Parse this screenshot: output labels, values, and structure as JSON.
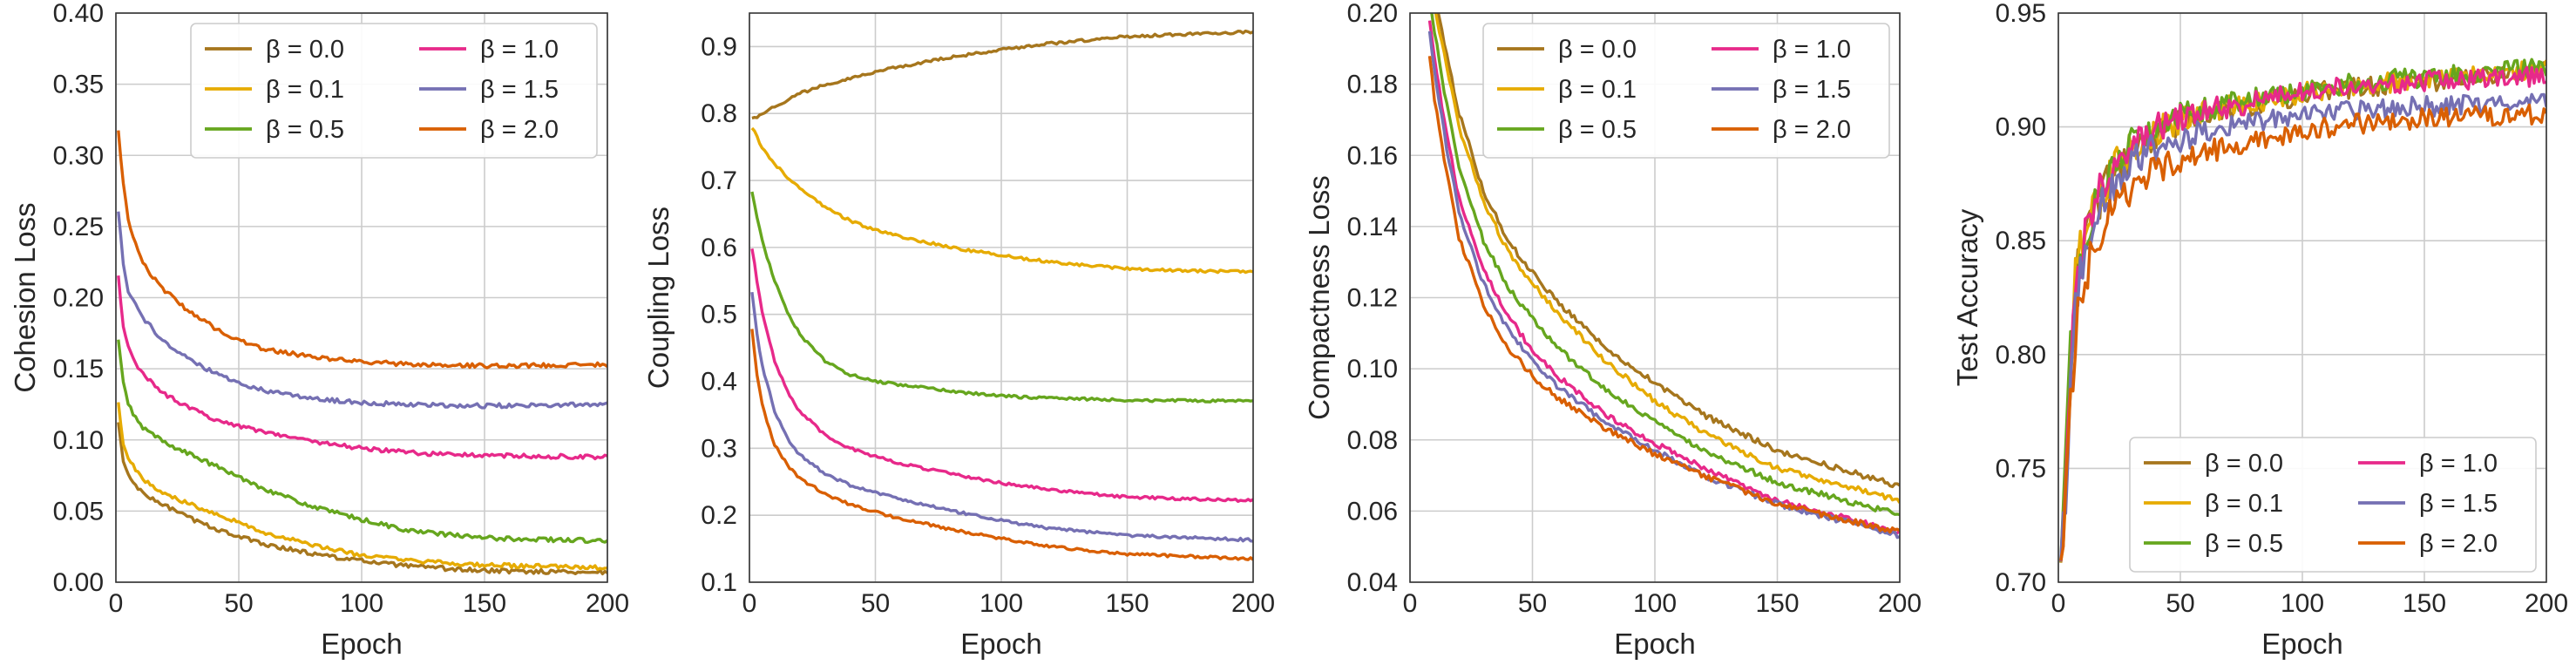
{
  "series_labels": [
    "β = 0.0",
    "β = 0.1",
    "β = 0.5",
    "β = 1.0",
    "β = 1.5",
    "β = 2.0"
  ],
  "series_colors": [
    "#a6761d",
    "#e6ab02",
    "#66a61e",
    "#e7298a",
    "#7570b3",
    "#d95f02"
  ],
  "chart_data": [
    {
      "type": "line",
      "xlabel": "Epoch",
      "ylabel": "Cohesion Loss",
      "xlim": [
        0,
        200
      ],
      "ylim": [
        0.0,
        0.4
      ],
      "xticks": [
        0,
        50,
        100,
        150,
        200
      ],
      "yticks": [
        0.0,
        0.05,
        0.1,
        0.15,
        0.2,
        0.25,
        0.3,
        0.35,
        0.4
      ],
      "ytick_decimals": 2,
      "grid": true,
      "legend": "top-right",
      "noise": 0.0015,
      "x": [
        1,
        3,
        5,
        10,
        15,
        20,
        30,
        40,
        50,
        60,
        80,
        100,
        120,
        150,
        200
      ],
      "series": [
        {
          "name": "β = 0.0",
          "values": [
            0.112,
            0.085,
            0.075,
            0.064,
            0.058,
            0.054,
            0.045,
            0.038,
            0.032,
            0.027,
            0.02,
            0.015,
            0.011,
            0.008,
            0.007
          ]
        },
        {
          "name": "β = 0.1",
          "values": [
            0.126,
            0.098,
            0.088,
            0.074,
            0.067,
            0.062,
            0.055,
            0.049,
            0.042,
            0.035,
            0.026,
            0.019,
            0.015,
            0.012,
            0.01
          ]
        },
        {
          "name": "β = 0.5",
          "values": [
            0.17,
            0.14,
            0.125,
            0.11,
            0.104,
            0.098,
            0.09,
            0.082,
            0.074,
            0.066,
            0.053,
            0.044,
            0.036,
            0.031,
            0.029
          ]
        },
        {
          "name": "β = 1.0",
          "values": [
            0.215,
            0.18,
            0.165,
            0.148,
            0.14,
            0.132,
            0.122,
            0.115,
            0.11,
            0.106,
            0.099,
            0.094,
            0.091,
            0.089,
            0.088
          ]
        },
        {
          "name": "β = 1.5",
          "values": [
            0.26,
            0.225,
            0.205,
            0.188,
            0.178,
            0.168,
            0.156,
            0.147,
            0.14,
            0.135,
            0.129,
            0.126,
            0.125,
            0.124,
            0.125
          ]
        },
        {
          "name": "β = 2.0",
          "values": [
            0.317,
            0.28,
            0.255,
            0.228,
            0.214,
            0.205,
            0.19,
            0.179,
            0.17,
            0.164,
            0.158,
            0.155,
            0.153,
            0.152,
            0.153
          ]
        }
      ]
    },
    {
      "type": "line",
      "xlabel": "Epoch",
      "ylabel": "Coupling Loss",
      "xlim": [
        0,
        200
      ],
      "ylim": [
        0.1,
        0.95
      ],
      "xticks": [
        0,
        50,
        100,
        150,
        200
      ],
      "yticks": [
        0.1,
        0.2,
        0.3,
        0.4,
        0.5,
        0.6,
        0.7,
        0.8,
        0.9
      ],
      "ytick_decimals": 1,
      "grid": true,
      "legend": "none",
      "noise": 0.002,
      "x": [
        1,
        3,
        5,
        10,
        15,
        20,
        30,
        40,
        50,
        60,
        80,
        100,
        120,
        150,
        200
      ],
      "series": [
        {
          "name": "β = 0.0",
          "values": [
            0.795,
            0.795,
            0.8,
            0.81,
            0.82,
            0.83,
            0.843,
            0.853,
            0.862,
            0.87,
            0.884,
            0.895,
            0.905,
            0.915,
            0.922
          ]
        },
        {
          "name": "β = 0.1",
          "values": [
            0.78,
            0.765,
            0.748,
            0.725,
            0.705,
            0.688,
            0.66,
            0.64,
            0.626,
            0.616,
            0.6,
            0.588,
            0.578,
            0.568,
            0.563
          ]
        },
        {
          "name": "β = 0.5",
          "values": [
            0.685,
            0.645,
            0.61,
            0.55,
            0.505,
            0.47,
            0.43,
            0.41,
            0.4,
            0.395,
            0.385,
            0.378,
            0.375,
            0.372,
            0.37
          ]
        },
        {
          "name": "β = 1.0",
          "values": [
            0.6,
            0.55,
            0.505,
            0.43,
            0.385,
            0.355,
            0.32,
            0.3,
            0.288,
            0.277,
            0.262,
            0.248,
            0.238,
            0.227,
            0.222
          ]
        },
        {
          "name": "β = 1.5",
          "values": [
            0.535,
            0.47,
            0.425,
            0.355,
            0.315,
            0.29,
            0.262,
            0.245,
            0.234,
            0.224,
            0.207,
            0.192,
            0.18,
            0.17,
            0.163
          ]
        },
        {
          "name": "β = 2.0",
          "values": [
            0.48,
            0.41,
            0.365,
            0.305,
            0.275,
            0.255,
            0.232,
            0.216,
            0.205,
            0.195,
            0.179,
            0.165,
            0.153,
            0.142,
            0.135
          ]
        }
      ]
    },
    {
      "type": "line",
      "xlabel": "Epoch",
      "ylabel": "Compactness Loss",
      "xlim": [
        0,
        200
      ],
      "ylim": [
        0.04,
        0.2
      ],
      "xticks": [
        0,
        50,
        100,
        150,
        200
      ],
      "yticks": [
        0.04,
        0.06,
        0.08,
        0.1,
        0.12,
        0.14,
        0.16,
        0.18,
        0.2
      ],
      "ytick_decimals": 2,
      "grid": true,
      "legend": "top-right",
      "noise": 0.0008,
      "x": [
        8,
        10,
        15,
        20,
        30,
        40,
        50,
        60,
        80,
        100,
        120,
        150,
        200
      ],
      "series": [
        {
          "name": "β = 0.0",
          "values": [
            0.215,
            0.205,
            0.188,
            0.172,
            0.15,
            0.136,
            0.127,
            0.119,
            0.106,
            0.096,
            0.087,
            0.077,
            0.067
          ]
        },
        {
          "name": "β = 0.1",
          "values": [
            0.212,
            0.202,
            0.185,
            0.168,
            0.147,
            0.133,
            0.124,
            0.116,
            0.102,
            0.091,
            0.082,
            0.072,
            0.063
          ]
        },
        {
          "name": "β = 0.5",
          "values": [
            0.205,
            0.195,
            0.174,
            0.157,
            0.136,
            0.123,
            0.114,
            0.106,
            0.094,
            0.085,
            0.077,
            0.068,
            0.059
          ]
        },
        {
          "name": "β = 1.0",
          "values": [
            0.198,
            0.187,
            0.166,
            0.148,
            0.128,
            0.115,
            0.105,
            0.098,
            0.087,
            0.079,
            0.072,
            0.063,
            0.054
          ]
        },
        {
          "name": "β = 1.5",
          "values": [
            0.195,
            0.184,
            0.162,
            0.144,
            0.124,
            0.111,
            0.102,
            0.095,
            0.085,
            0.077,
            0.07,
            0.062,
            0.053
          ]
        },
        {
          "name": "β = 2.0",
          "values": [
            0.188,
            0.176,
            0.155,
            0.137,
            0.118,
            0.106,
            0.098,
            0.092,
            0.083,
            0.076,
            0.07,
            0.062,
            0.054
          ]
        }
      ]
    },
    {
      "type": "line",
      "xlabel": "Epoch",
      "ylabel": "Test Accuracy",
      "xlim": [
        0,
        200
      ],
      "ylim": [
        0.7,
        0.95
      ],
      "xticks": [
        0,
        50,
        100,
        150,
        200
      ],
      "yticks": [
        0.7,
        0.75,
        0.8,
        0.85,
        0.9,
        0.95
      ],
      "ytick_decimals": 2,
      "grid": true,
      "legend": "bottom-right",
      "noise": 0.0045,
      "x": [
        1,
        3,
        5,
        7,
        10,
        15,
        20,
        25,
        30,
        40,
        50,
        60,
        80,
        100,
        120,
        150,
        200
      ],
      "series": [
        {
          "name": "β = 0.0",
          "values": [
            0.7,
            0.74,
            0.79,
            0.83,
            0.845,
            0.862,
            0.874,
            0.882,
            0.888,
            0.896,
            0.902,
            0.906,
            0.91,
            0.914,
            0.917,
            0.92,
            0.924
          ]
        },
        {
          "name": "β = 0.1",
          "values": [
            0.7,
            0.745,
            0.8,
            0.835,
            0.848,
            0.865,
            0.877,
            0.885,
            0.891,
            0.898,
            0.903,
            0.907,
            0.911,
            0.915,
            0.918,
            0.921,
            0.925
          ]
        },
        {
          "name": "β = 0.5",
          "values": [
            0.7,
            0.75,
            0.8,
            0.83,
            0.847,
            0.868,
            0.88,
            0.888,
            0.894,
            0.901,
            0.905,
            0.908,
            0.912,
            0.916,
            0.919,
            0.922,
            0.926
          ]
        },
        {
          "name": "β = 1.0",
          "values": [
            0.7,
            0.745,
            0.795,
            0.828,
            0.845,
            0.866,
            0.878,
            0.886,
            0.892,
            0.9,
            0.904,
            0.907,
            0.911,
            0.915,
            0.918,
            0.92,
            0.922
          ]
        },
        {
          "name": "β = 1.5",
          "values": [
            0.7,
            0.74,
            0.79,
            0.82,
            0.84,
            0.858,
            0.87,
            0.878,
            0.884,
            0.891,
            0.895,
            0.898,
            0.902,
            0.905,
            0.907,
            0.909,
            0.91
          ]
        },
        {
          "name": "β = 2.0",
          "values": [
            0.7,
            0.735,
            0.775,
            0.81,
            0.83,
            0.848,
            0.86,
            0.868,
            0.874,
            0.881,
            0.886,
            0.889,
            0.894,
            0.898,
            0.901,
            0.904,
            0.906
          ]
        }
      ]
    }
  ]
}
